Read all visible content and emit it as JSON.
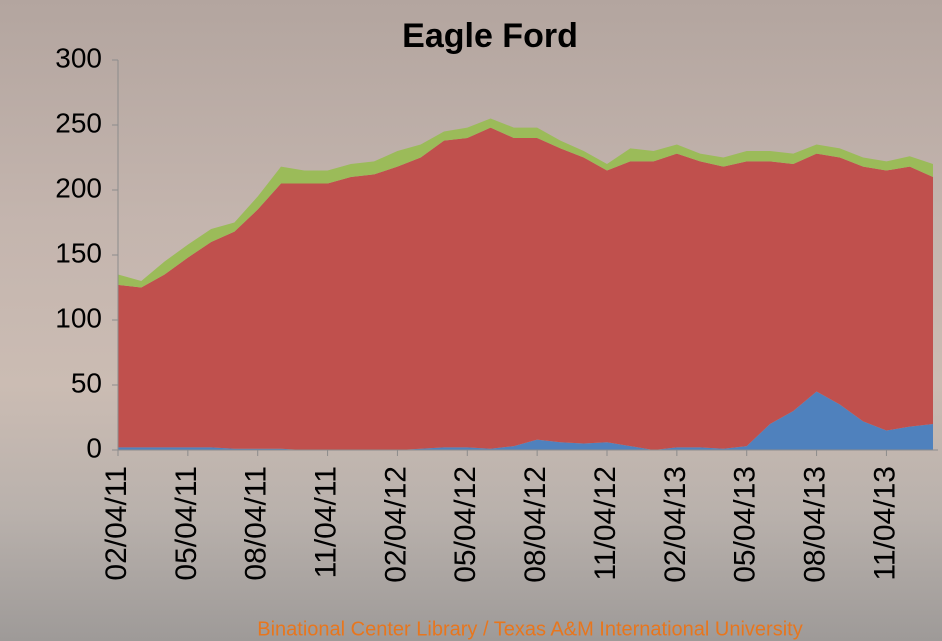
{
  "chart_data": {
    "type": "stacked-area",
    "title": "Eagle Ford",
    "categories": [
      "02/04/11",
      null,
      null,
      "05/04/11",
      null,
      null,
      "08/04/11",
      null,
      null,
      "11/04/11",
      null,
      null,
      "02/04/12",
      null,
      null,
      "05/04/12",
      null,
      null,
      "08/04/12",
      null,
      null,
      "11/04/12",
      null,
      null,
      "02/04/13",
      null,
      null,
      "05/04/13",
      null,
      null,
      "08/04/13",
      null,
      null,
      "11/04/13",
      null,
      null
    ],
    "series": [
      {
        "color": "#4f81bd",
        "values": [
          2,
          2,
          2,
          2,
          2,
          1,
          1,
          1,
          0,
          0,
          0,
          0,
          0,
          1,
          2,
          2,
          1,
          3,
          8,
          6,
          5,
          6,
          3,
          0,
          2,
          2,
          1,
          3,
          20,
          30,
          45,
          35,
          22,
          15,
          18,
          20
        ]
      },
      {
        "color": "#c0504d",
        "values": [
          125,
          123,
          133,
          146,
          158,
          167,
          184,
          204,
          205,
          205,
          210,
          212,
          218,
          224,
          236,
          238,
          247,
          237,
          232,
          226,
          220,
          209,
          219,
          222,
          226,
          220,
          217,
          219,
          202,
          190,
          183,
          190,
          196,
          200,
          200,
          190
        ]
      },
      {
        "color": "#9bbb59",
        "values": [
          8,
          5,
          10,
          10,
          10,
          7,
          10,
          13,
          10,
          10,
          10,
          10,
          12,
          10,
          7,
          8,
          7,
          8,
          8,
          6,
          5,
          5,
          10,
          8,
          7,
          6,
          7,
          8,
          8,
          8,
          7,
          7,
          7,
          7,
          8,
          10
        ]
      }
    ],
    "ylim": [
      0,
      300
    ],
    "yticks": [
      0,
      50,
      100,
      150,
      200,
      250,
      300
    ]
  },
  "footer": "Binational Center Library / Texas A&M International University"
}
